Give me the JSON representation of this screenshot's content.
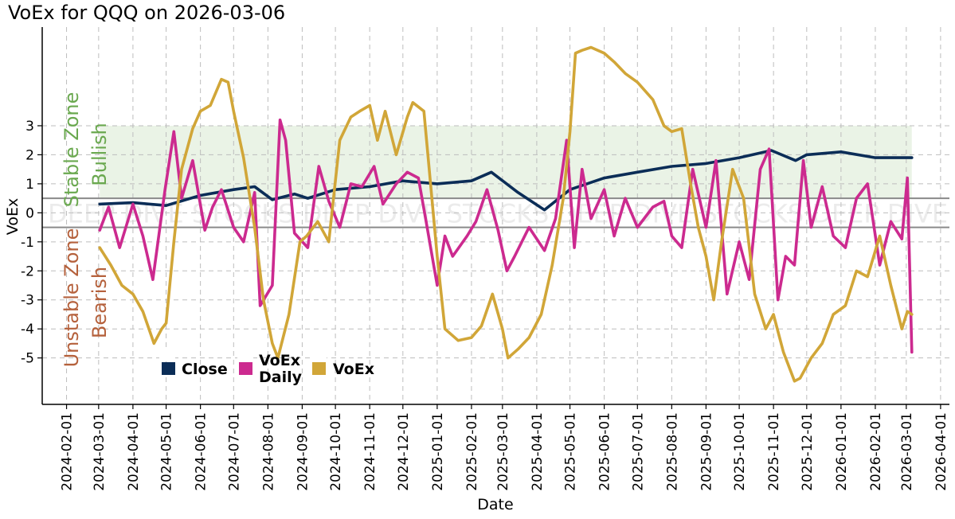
{
  "chart_data": {
    "type": "line",
    "title": "VoEx for QQQ on 2026-03-06",
    "xlabel": "Date",
    "ylabel": "VoEx",
    "x_ticks": [
      "2024-02-01",
      "2024-03-01",
      "2024-04-01",
      "2024-05-01",
      "2024-06-01",
      "2024-07-01",
      "2024-08-01",
      "2024-09-01",
      "2024-10-01",
      "2024-11-01",
      "2024-12-01",
      "2025-01-01",
      "2025-02-01",
      "2025-03-01",
      "2025-04-01",
      "2025-05-01",
      "2025-06-01",
      "2025-07-01",
      "2025-08-01",
      "2025-09-01",
      "2025-10-01",
      "2025-11-01",
      "2025-12-01",
      "2026-01-01",
      "2026-02-01",
      "2026-03-01",
      "2026-04-01"
    ],
    "y_ticks": [
      3,
      2,
      1,
      0,
      -1,
      -2,
      -3,
      -4,
      -5
    ],
    "xlim": [
      "2024-01-10",
      "2026-04-09"
    ],
    "ylim": [
      -6.6,
      6.4
    ],
    "grid": true,
    "zones": {
      "stable": {
        "label": "Stable Zone",
        "sublabel": "Bullish",
        "from": 0.5,
        "to": 3,
        "color": "#6aa84f"
      },
      "unstable": {
        "label": "Unstable Zone",
        "sublabel": "Bearish",
        "from": -5,
        "to": -0.5,
        "color": "#b5613c"
      },
      "threshold_lines": [
        0.5,
        -0.5
      ]
    },
    "watermark": "DEEP DIVE STOCKS",
    "legend": {
      "placement": "lower-left"
    },
    "series": [
      {
        "name": "Close",
        "color": "#0b2d57",
        "x": [
          "2024-03-02",
          "2024-04-01",
          "2024-05-01",
          "2024-06-01",
          "2024-07-01",
          "2024-07-20",
          "2024-08-05",
          "2024-08-25",
          "2024-09-06",
          "2024-10-01",
          "2024-11-01",
          "2024-12-01",
          "2025-01-01",
          "2025-02-01",
          "2025-02-19",
          "2025-03-15",
          "2025-04-08",
          "2025-05-01",
          "2025-06-01",
          "2025-07-01",
          "2025-08-01",
          "2025-09-01",
          "2025-10-01",
          "2025-10-30",
          "2025-11-21",
          "2025-12-01",
          "2026-01-01",
          "2026-02-01",
          "2026-03-06"
        ],
        "values": [
          0.3,
          0.35,
          0.25,
          0.6,
          0.8,
          0.9,
          0.45,
          0.65,
          0.5,
          0.8,
          0.9,
          1.1,
          1.0,
          1.1,
          1.4,
          0.7,
          0.1,
          0.8,
          1.2,
          1.4,
          1.6,
          1.7,
          1.9,
          2.15,
          1.8,
          2.0,
          2.1,
          1.9,
          1.9
        ]
      },
      {
        "name": "VoEx Daily",
        "color": "#cc2a8f",
        "x": [
          "2024-03-02",
          "2024-03-10",
          "2024-03-20",
          "2024-04-01",
          "2024-04-10",
          "2024-04-19",
          "2024-04-30",
          "2024-05-08",
          "2024-05-15",
          "2024-05-25",
          "2024-06-05",
          "2024-06-12",
          "2024-06-20",
          "2024-07-01",
          "2024-07-10",
          "2024-07-20",
          "2024-07-25",
          "2024-08-05",
          "2024-08-12",
          "2024-08-17",
          "2024-08-25",
          "2024-09-06",
          "2024-09-16",
          "2024-09-25",
          "2024-10-05",
          "2024-10-15",
          "2024-10-25",
          "2024-11-05",
          "2024-11-13",
          "2024-11-25",
          "2024-12-05",
          "2024-12-15",
          "2024-12-22",
          "2025-01-01",
          "2025-01-08",
          "2025-01-15",
          "2025-01-28",
          "2025-02-05",
          "2025-02-15",
          "2025-02-25",
          "2025-03-05",
          "2025-03-12",
          "2025-03-25",
          "2025-04-08",
          "2025-04-18",
          "2025-04-28",
          "2025-05-05",
          "2025-05-12",
          "2025-05-20",
          "2025-06-01",
          "2025-06-10",
          "2025-06-20",
          "2025-07-01",
          "2025-07-15",
          "2025-07-25",
          "2025-08-01",
          "2025-08-10",
          "2025-08-20",
          "2025-09-01",
          "2025-09-10",
          "2025-09-20",
          "2025-10-01",
          "2025-10-10",
          "2025-10-20",
          "2025-10-28",
          "2025-11-05",
          "2025-11-12",
          "2025-11-20",
          "2025-11-28",
          "2025-12-05",
          "2025-12-15",
          "2025-12-25",
          "2026-01-05",
          "2026-01-15",
          "2026-01-25",
          "2026-02-05",
          "2026-02-15",
          "2026-02-25",
          "2026-03-02",
          "2026-03-06"
        ],
        "values": [
          -0.6,
          0.2,
          -1.2,
          0.3,
          -0.8,
          -2.3,
          0.8,
          2.8,
          0.5,
          1.8,
          -0.6,
          0.2,
          0.8,
          -0.5,
          -1.0,
          0.7,
          -3.2,
          -2.5,
          3.2,
          2.5,
          -0.7,
          -1.2,
          1.6,
          0.4,
          -0.5,
          1.0,
          0.9,
          1.6,
          0.3,
          1.0,
          1.4,
          1.2,
          -0.3,
          -2.5,
          -0.8,
          -1.5,
          -0.8,
          -0.3,
          0.8,
          -0.6,
          -2.0,
          -1.5,
          -0.5,
          -1.3,
          -0.2,
          2.5,
          -1.2,
          1.5,
          -0.2,
          0.8,
          -0.8,
          0.5,
          -0.5,
          0.2,
          0.4,
          -0.8,
          -1.2,
          1.5,
          -0.5,
          1.8,
          -2.8,
          -1.0,
          -2.3,
          1.5,
          2.2,
          -3.0,
          -1.5,
          -1.8,
          1.8,
          -0.5,
          0.9,
          -0.8,
          -1.2,
          0.5,
          1.0,
          -1.8,
          -0.3,
          -0.9,
          1.2,
          -4.8
        ]
      },
      {
        "name": "VoEx",
        "color": "#d1a638",
        "x": [
          "2024-03-02",
          "2024-03-12",
          "2024-03-22",
          "2024-04-01",
          "2024-04-10",
          "2024-04-20",
          "2024-04-27",
          "2024-05-01",
          "2024-05-08",
          "2024-05-15",
          "2024-05-25",
          "2024-06-01",
          "2024-06-10",
          "2024-06-20",
          "2024-06-26",
          "2024-07-01",
          "2024-07-10",
          "2024-07-20",
          "2024-07-28",
          "2024-08-05",
          "2024-08-10",
          "2024-08-20",
          "2024-08-30",
          "2024-09-05",
          "2024-09-15",
          "2024-09-25",
          "2024-10-05",
          "2024-10-15",
          "2024-10-23",
          "2024-11-01",
          "2024-11-08",
          "2024-11-15",
          "2024-11-25",
          "2024-12-05",
          "2024-12-10",
          "2024-12-20",
          "2025-01-01",
          "2025-01-08",
          "2025-01-20",
          "2025-02-01",
          "2025-02-10",
          "2025-02-20",
          "2025-03-01",
          "2025-03-06",
          "2025-03-15",
          "2025-03-25",
          "2025-04-05",
          "2025-04-15",
          "2025-04-25",
          "2025-05-01",
          "2025-05-06",
          "2025-05-12",
          "2025-05-20",
          "2025-06-01",
          "2025-06-10",
          "2025-06-20",
          "2025-07-01",
          "2025-07-15",
          "2025-07-25",
          "2025-08-01",
          "2025-08-10",
          "2025-08-18",
          "2025-08-25",
          "2025-09-01",
          "2025-09-08",
          "2025-09-15",
          "2025-09-25",
          "2025-10-05",
          "2025-10-15",
          "2025-10-25",
          "2025-11-01",
          "2025-11-10",
          "2025-11-20",
          "2025-11-25",
          "2025-12-05",
          "2025-12-15",
          "2025-12-25",
          "2026-01-05",
          "2026-01-15",
          "2026-01-25",
          "2026-02-05",
          "2026-02-15",
          "2026-02-25",
          "2026-03-02",
          "2026-03-06"
        ],
        "values": [
          -1.2,
          -1.8,
          -2.5,
          -2.8,
          -3.4,
          -4.5,
          -4.0,
          -3.8,
          -1.0,
          1.5,
          2.9,
          3.5,
          3.7,
          4.6,
          4.5,
          3.5,
          1.9,
          -0.5,
          -3.0,
          -4.5,
          -5.0,
          -3.5,
          -1.0,
          -0.8,
          -0.3,
          -1.0,
          2.5,
          3.3,
          3.5,
          3.7,
          2.5,
          3.5,
          2.0,
          3.3,
          3.8,
          3.5,
          -1.5,
          -4.0,
          -4.4,
          -4.3,
          -3.9,
          -2.8,
          -4.0,
          -5.0,
          -4.7,
          -4.3,
          -3.5,
          -1.8,
          0.5,
          2.8,
          5.5,
          5.6,
          5.7,
          5.5,
          5.2,
          4.8,
          4.5,
          3.9,
          3.0,
          2.8,
          2.9,
          1.0,
          -0.5,
          -1.5,
          -3.0,
          -1.0,
          1.5,
          0.5,
          -2.8,
          -4.0,
          -3.5,
          -4.8,
          -5.8,
          -5.7,
          -5.0,
          -4.5,
          -3.5,
          -3.2,
          -2.0,
          -2.2,
          -0.8,
          -2.5,
          -4.0,
          -3.4,
          -3.5
        ]
      }
    ]
  }
}
